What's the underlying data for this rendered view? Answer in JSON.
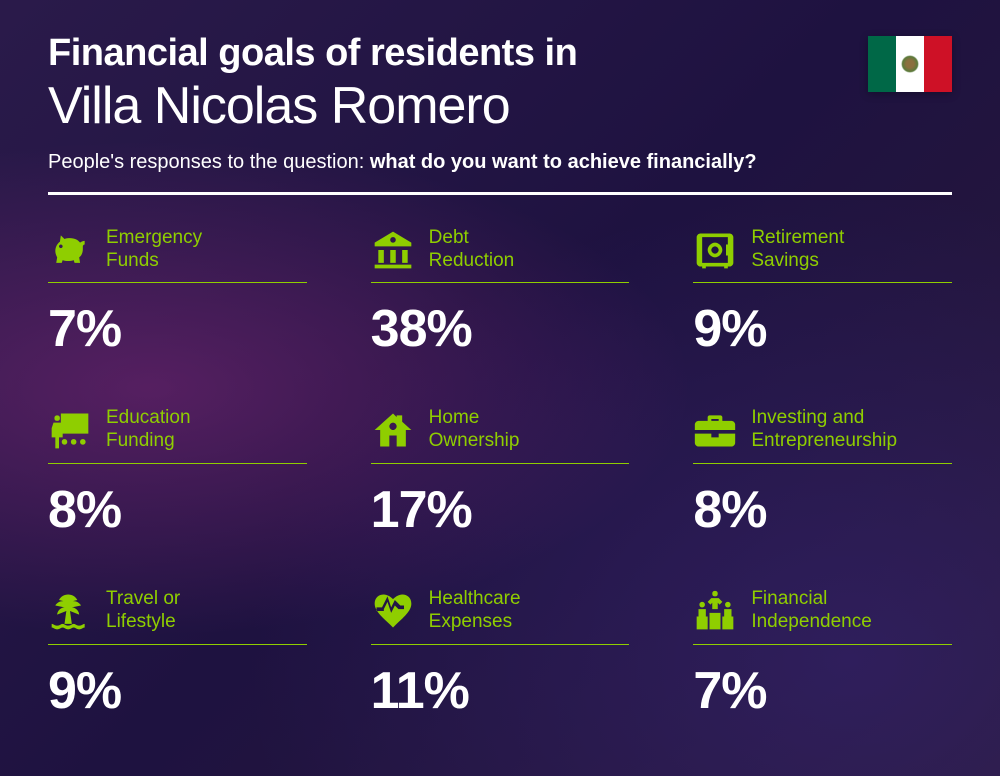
{
  "header": {
    "title_line1": "Financial goals of residents in",
    "title_line2": "Villa Nicolas Romero",
    "subtitle_prefix": "People's responses to the question: ",
    "subtitle_bold": "what do you want to achieve financially?"
  },
  "flag": {
    "stripe1_color": "#006847",
    "stripe2_color": "#ffffff",
    "stripe3_color": "#ce1126"
  },
  "styling": {
    "accent_color": "#8fce00",
    "title_color": "#ffffff",
    "percentage_color": "#ffffff",
    "divider_color": "#ffffff",
    "background_gradient": "radial purple/magenta",
    "title_line1_fontsize": 38,
    "title_line1_weight": 800,
    "title_line2_fontsize": 52,
    "title_line2_weight": 300,
    "subtitle_fontsize": 20,
    "label_fontsize": 19,
    "percentage_fontsize": 52,
    "percentage_weight": 800,
    "grid_cols": 3,
    "grid_rows": 3
  },
  "items": [
    {
      "icon": "piggy-bank-icon",
      "label": "Emergency\nFunds",
      "percentage": "7%"
    },
    {
      "icon": "bank-icon",
      "label": "Debt\nReduction",
      "percentage": "38%"
    },
    {
      "icon": "safe-icon",
      "label": "Retirement\nSavings",
      "percentage": "9%"
    },
    {
      "icon": "presentation-icon",
      "label": "Education\nFunding",
      "percentage": "8%"
    },
    {
      "icon": "house-icon",
      "label": "Home\nOwnership",
      "percentage": "17%"
    },
    {
      "icon": "briefcase-icon",
      "label": "Investing and\nEntrepreneurship",
      "percentage": "8%"
    },
    {
      "icon": "palm-tree-icon",
      "label": "Travel or\nLifestyle",
      "percentage": "9%"
    },
    {
      "icon": "heart-pulse-icon",
      "label": "Healthcare\nExpenses",
      "percentage": "11%"
    },
    {
      "icon": "podium-icon",
      "label": "Financial\nIndependence",
      "percentage": "7%"
    }
  ]
}
